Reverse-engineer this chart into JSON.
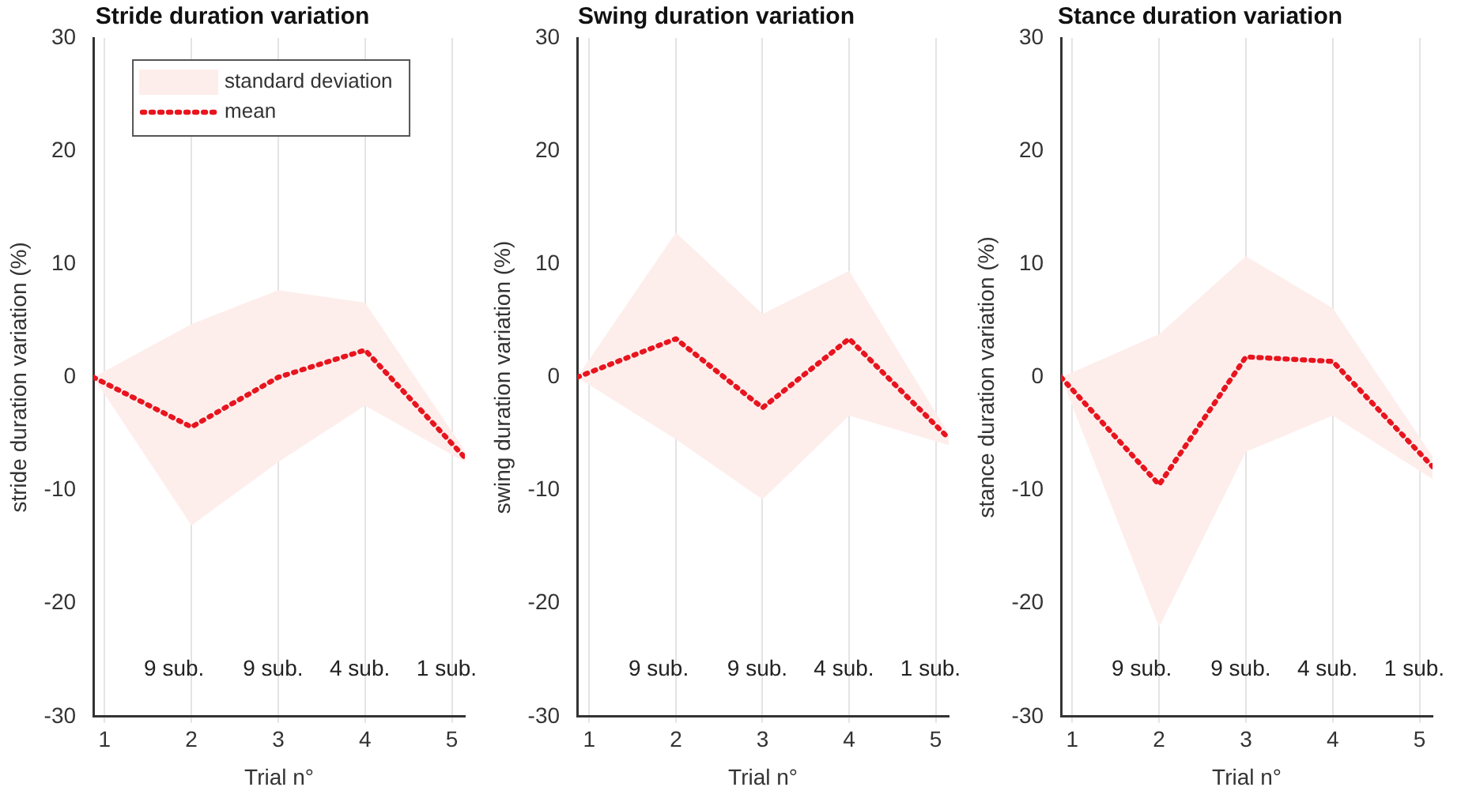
{
  "chart_data": [
    {
      "type": "line",
      "title": "Stride duration variation",
      "xlabel": "Trial n°",
      "ylabel": "stride duration variation (%)",
      "xlim": [
        0.87,
        5.15
      ],
      "xticks": [
        1,
        2,
        3,
        4,
        5
      ],
      "ylim": [
        -30,
        30
      ],
      "yticks": [
        -30,
        -20,
        -10,
        0,
        10,
        20,
        30
      ],
      "grid": "x",
      "legend": "top left",
      "marker": "none",
      "line_style": "dotted",
      "x": [
        0.87,
        2,
        3,
        4,
        5.15
      ],
      "series": [
        {
          "name": "standard deviation",
          "type": "area",
          "color": "#fdeeec",
          "values": [
            null,
            null,
            null,
            null,
            null
          ],
          "lower": [
            0,
            -13.1,
            -7.5,
            -2.5,
            -7.5
          ],
          "upper": [
            0,
            4.7,
            7.7,
            6.6,
            -6.5
          ]
        },
        {
          "name": "mean",
          "color": "#e8141e",
          "values": [
            0,
            -4.4,
            0,
            2.4,
            -7.1
          ]
        }
      ],
      "annotations": [
        "9 sub.",
        "9 sub.",
        "4 sub.",
        "1 sub."
      ]
    },
    {
      "type": "line",
      "title": "Swing duration variation",
      "xlabel": "Trial n°",
      "ylabel": "swing duration variation (%)",
      "xlim": [
        0.86,
        5.15
      ],
      "xticks": [
        1,
        2,
        3,
        4,
        5
      ],
      "ylim": [
        -30,
        30
      ],
      "yticks": [
        -30,
        -20,
        -10,
        0,
        10,
        20,
        30
      ],
      "grid": "x",
      "marker": "none",
      "line_style": "dotted",
      "x": [
        0.86,
        2,
        3,
        4,
        5.15
      ],
      "series": [
        {
          "type": "area",
          "color": "#fdeeec",
          "values": [
            null,
            null,
            null,
            null,
            null
          ],
          "lower": [
            0,
            -5.5,
            -10.8,
            -3.4,
            -6
          ],
          "upper": [
            0,
            12.8,
            5.6,
            9.4,
            -5
          ]
        },
        {
          "color": "#e8141e",
          "values": [
            0,
            3.4,
            -2.7,
            3.4,
            -5.4
          ]
        }
      ],
      "annotations": [
        "9 sub.",
        "9 sub.",
        "4 sub.",
        "1 sub."
      ]
    },
    {
      "type": "line",
      "title": "Stance duration variation",
      "xlabel": "Trial n°",
      "ylabel": "stance duration variation (%)",
      "xlim": [
        0.87,
        5.15
      ],
      "xticks": [
        1,
        2,
        3,
        4,
        5
      ],
      "ylim": [
        -30,
        30
      ],
      "yticks": [
        -30,
        -20,
        -10,
        0,
        10,
        20,
        30
      ],
      "grid": "x",
      "marker": "none",
      "line_style": "dotted",
      "x": [
        0.87,
        2,
        3,
        4,
        5.15
      ],
      "series": [
        {
          "type": "area",
          "color": "#fdeeec",
          "values": [
            null,
            null,
            null,
            null,
            null
          ],
          "lower": [
            0,
            -22.1,
            -6.6,
            -3.4,
            -9
          ],
          "upper": [
            0,
            3.8,
            10.7,
            6.1,
            -7
          ]
        },
        {
          "color": "#e8141e",
          "values": [
            0,
            -9.5,
            1.8,
            1.4,
            -7.9
          ]
        }
      ],
      "annotations": [
        "9 sub.",
        "9 sub.",
        "4 sub.",
        "1 sub."
      ]
    }
  ]
}
